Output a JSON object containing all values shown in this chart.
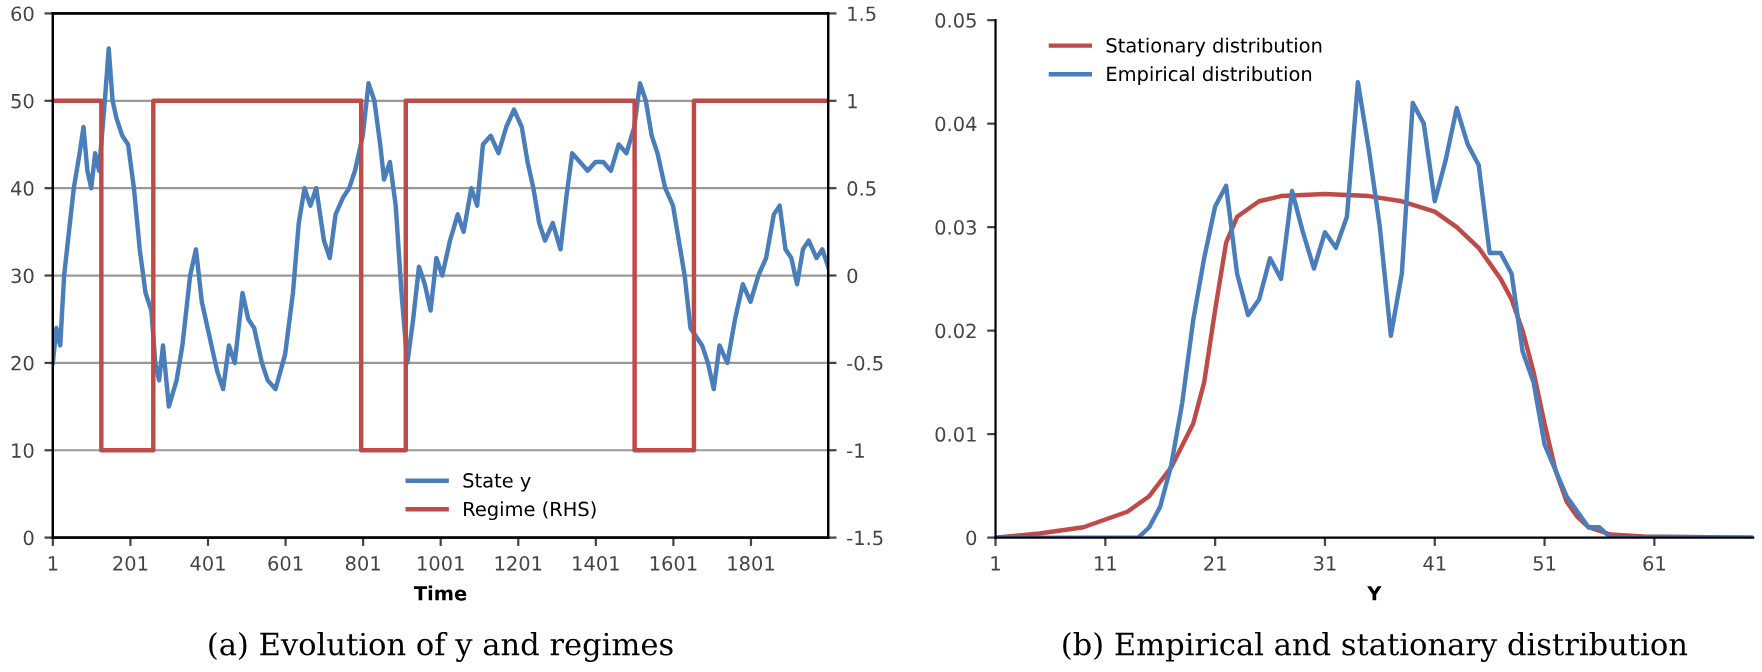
{
  "chart_data": [
    {
      "type": "line",
      "xlabel": "Time",
      "xlim": [
        1,
        2000
      ],
      "xticks": [
        1,
        201,
        401,
        601,
        801,
        1001,
        1201,
        1401,
        1601,
        1801
      ],
      "ylim": [
        0,
        60
      ],
      "yticks": [
        0,
        10,
        20,
        30,
        40,
        50,
        60
      ],
      "y2lim": [
        -1.5,
        1.5
      ],
      "y2ticks": [
        -1.5,
        -1,
        -0.5,
        0,
        0.5,
        1,
        1.5
      ],
      "grid": "y",
      "legend": "bottom",
      "annotations": [
        "(a) Evolution of y and regimes"
      ],
      "series": [
        {
          "name": "State y",
          "color": "#4a7ebb",
          "x": [
            1,
            10,
            20,
            30,
            45,
            55,
            70,
            80,
            90,
            100,
            110,
            120,
            135,
            145,
            155,
            165,
            180,
            195,
            210,
            225,
            240,
            255,
            265,
            275,
            285,
            300,
            320,
            335,
            355,
            370,
            385,
            405,
            425,
            440,
            455,
            470,
            490,
            505,
            520,
            540,
            555,
            575,
            600,
            620,
            635,
            650,
            665,
            680,
            700,
            715,
            730,
            750,
            765,
            780,
            800,
            815,
            830,
            845,
            855,
            870,
            885,
            900,
            915,
            930,
            945,
            960,
            975,
            990,
            1005,
            1025,
            1045,
            1060,
            1080,
            1095,
            1110,
            1130,
            1150,
            1170,
            1190,
            1210,
            1225,
            1240,
            1255,
            1270,
            1290,
            1310,
            1325,
            1340,
            1360,
            1380,
            1400,
            1420,
            1440,
            1460,
            1480,
            1500,
            1515,
            1530,
            1545,
            1560,
            1580,
            1600,
            1615,
            1630,
            1645,
            1660,
            1675,
            1690,
            1705,
            1720,
            1740,
            1760,
            1780,
            1800,
            1820,
            1840,
            1860,
            1875,
            1890,
            1905,
            1920,
            1935,
            1950,
            1970,
            1985,
            2000
          ],
          "values": [
            20,
            24,
            22,
            30,
            36,
            40,
            44,
            47,
            42,
            40,
            44,
            42,
            50,
            56,
            50,
            48,
            46,
            45,
            40,
            33,
            28,
            26,
            20,
            18,
            22,
            15,
            18,
            22,
            30,
            33,
            27,
            23,
            19,
            17,
            22,
            20,
            28,
            25,
            24,
            20,
            18,
            17,
            21,
            28,
            36,
            40,
            38,
            40,
            34,
            32,
            37,
            39,
            40,
            42,
            46,
            52,
            50,
            45,
            41,
            43,
            38,
            28,
            20,
            25,
            31,
            29,
            26,
            32,
            30,
            34,
            37,
            35,
            40,
            38,
            45,
            46,
            44,
            47,
            49,
            47,
            43,
            40,
            36,
            34,
            36,
            33,
            39,
            44,
            43,
            42,
            43,
            43,
            42,
            45,
            44,
            47,
            52,
            50,
            46,
            44,
            40,
            38,
            34,
            30,
            24,
            23,
            22,
            20,
            17,
            22,
            20,
            25,
            29,
            27,
            30,
            32,
            37,
            38,
            33,
            32,
            29,
            33,
            34,
            32,
            33,
            31
          ]
        },
        {
          "name": "Regime (RHS)",
          "color": "#be4b48",
          "axis": "y2",
          "x": [
            1,
            126,
            126,
            260,
            260,
            796,
            796,
            911,
            911,
            1501,
            1501,
            1654,
            1654,
            2000
          ],
          "values": [
            1,
            1,
            -1,
            -1,
            1,
            1,
            -1,
            -1,
            1,
            1,
            -1,
            -1,
            1,
            1
          ]
        }
      ]
    },
    {
      "type": "line",
      "xlabel": "Y",
      "xlim": [
        1,
        70
      ],
      "xticks": [
        1,
        11,
        21,
        31,
        41,
        51,
        61
      ],
      "ylim": [
        0,
        0.05
      ],
      "yticks": [
        0,
        0.01,
        0.02,
        0.03,
        0.04,
        0.05
      ],
      "legend": "top left",
      "annotations": [
        "(b) Empirical and stationary distribution"
      ],
      "series": [
        {
          "name": "Stationary distribution",
          "color": "#be4b48",
          "x": [
            1,
            5,
            9,
            13,
            15,
            17,
            19,
            20,
            21,
            22,
            23,
            25,
            27,
            31,
            35,
            38,
            41,
            43,
            45,
            47,
            48,
            49,
            50,
            51,
            52,
            53,
            54,
            55,
            57,
            60,
            70
          ],
          "values": [
            0,
            0.0004,
            0.001,
            0.0025,
            0.004,
            0.0068,
            0.011,
            0.015,
            0.022,
            0.0285,
            0.031,
            0.0325,
            0.033,
            0.0332,
            0.033,
            0.0325,
            0.0315,
            0.03,
            0.028,
            0.025,
            0.023,
            0.02,
            0.016,
            0.011,
            0.0065,
            0.0035,
            0.002,
            0.001,
            0.0003,
            0.0001,
            0
          ]
        },
        {
          "name": "Empirical distribution",
          "color": "#4a7ebb",
          "x": [
            1,
            14,
            15,
            16,
            17,
            18,
            19,
            20,
            21,
            22,
            23,
            24,
            25,
            26,
            27,
            28,
            29,
            30,
            31,
            32,
            33,
            34,
            35,
            36,
            37,
            38,
            39,
            40,
            41,
            42,
            43,
            44,
            45,
            46,
            47,
            48,
            49,
            50,
            51,
            52,
            53,
            54,
            55,
            56,
            57,
            70
          ],
          "values": [
            0,
            0,
            0.001,
            0.003,
            0.007,
            0.013,
            0.021,
            0.027,
            0.032,
            0.034,
            0.0255,
            0.0215,
            0.023,
            0.027,
            0.025,
            0.0335,
            0.0295,
            0.026,
            0.0295,
            0.028,
            0.031,
            0.044,
            0.0375,
            0.03,
            0.0195,
            0.0255,
            0.042,
            0.04,
            0.0325,
            0.0365,
            0.0415,
            0.038,
            0.036,
            0.0275,
            0.0275,
            0.0255,
            0.018,
            0.015,
            0.009,
            0.0065,
            0.004,
            0.0025,
            0.001,
            0.001,
            0,
            0
          ]
        }
      ]
    }
  ]
}
